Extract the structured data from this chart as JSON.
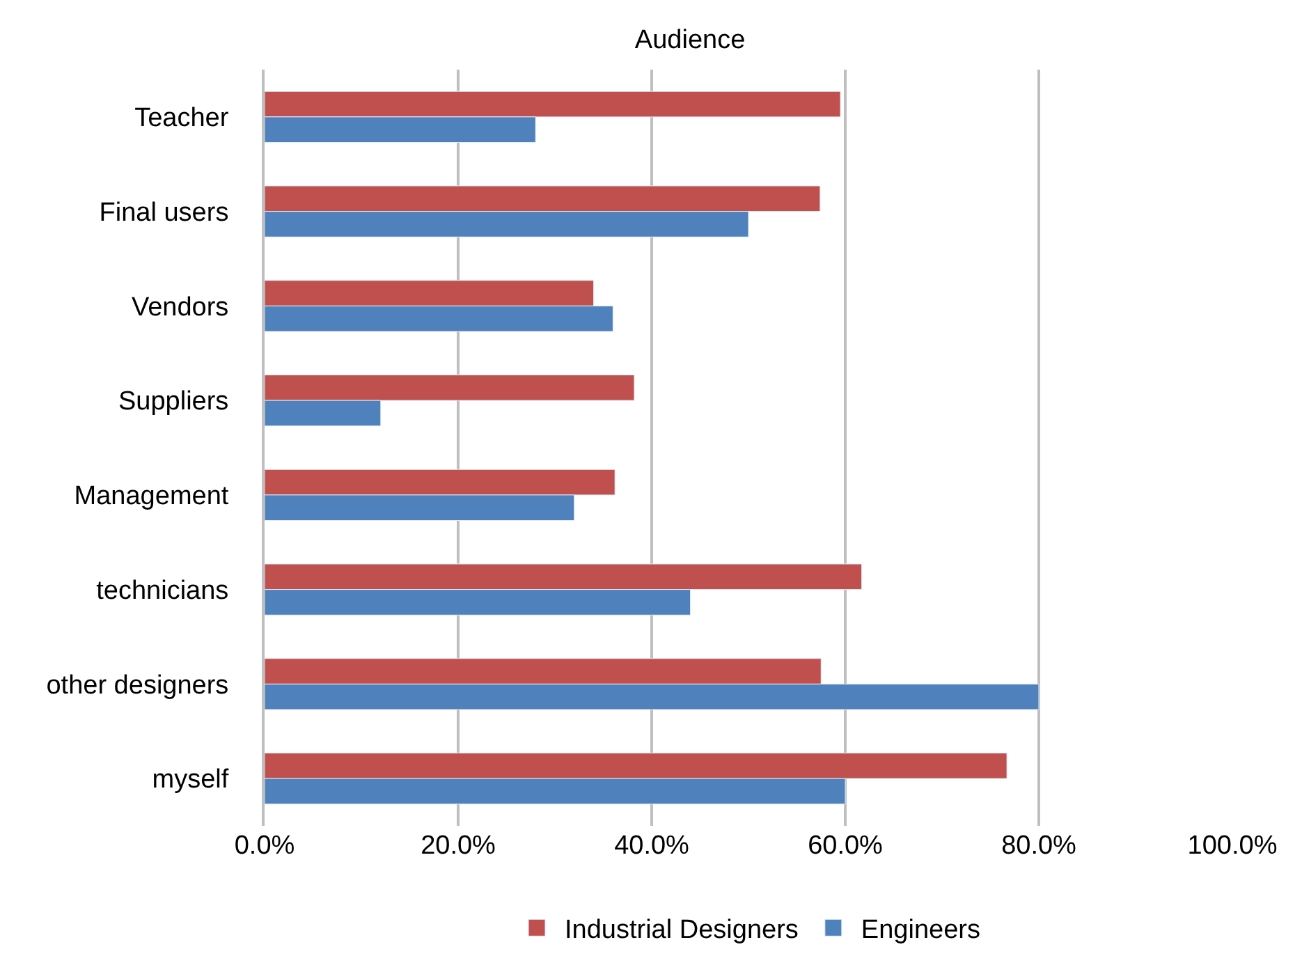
{
  "chart_data": {
    "type": "bar",
    "orientation": "horizontal",
    "title": "Audience",
    "categories": [
      "Teacher",
      "Final users",
      "Vendors",
      "Suppliers",
      "Management",
      "technicians",
      "other designers",
      "myself"
    ],
    "series": [
      {
        "name": "Industrial Designers",
        "color": "#c0504d",
        "values": [
          59.5,
          57.4,
          34.0,
          38.2,
          36.2,
          61.7,
          57.5,
          76.7
        ]
      },
      {
        "name": "Engineers",
        "color": "#4f81bd",
        "values": [
          28.0,
          50.0,
          36.0,
          12.0,
          32.0,
          44.0,
          80.0,
          60.0
        ]
      }
    ],
    "xlim": [
      0,
      100
    ],
    "xticks": [
      {
        "value": 0,
        "label": "0.0%"
      },
      {
        "value": 20,
        "label": "20.0%"
      },
      {
        "value": 40,
        "label": "40.0%"
      },
      {
        "value": 60,
        "label": "60.0%"
      },
      {
        "value": 80,
        "label": "80.0%"
      },
      {
        "value": 100,
        "label": "100.0%"
      }
    ],
    "grid": "x",
    "legend": "bottom"
  }
}
